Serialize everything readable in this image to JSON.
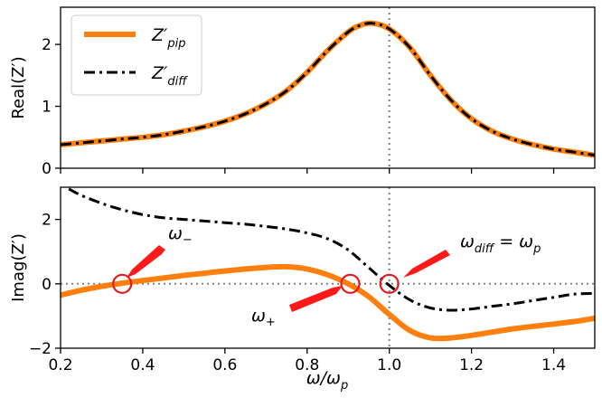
{
  "colors": {
    "pip": "#ff7f0e",
    "diff": "#000000",
    "marker": "#e31a1c",
    "arrow": "#ff1a1a",
    "guide": "#808080"
  },
  "chart_data": [
    {
      "type": "line",
      "panel": "top",
      "ylabel": "Real(Z′)",
      "xlim": [
        0.2,
        1.5
      ],
      "ylim": [
        0,
        2.6
      ],
      "yticks": [
        0,
        1,
        2
      ],
      "ytick_labels": [
        "0",
        "1",
        "2"
      ],
      "vline_x": 1.0,
      "legend_position": "top-left",
      "series": [
        {
          "name": "pip",
          "legend_base": "Z′",
          "legend_sub": "pip",
          "style": "solid",
          "x": [
            0.2,
            0.25,
            0.3,
            0.35,
            0.4,
            0.45,
            0.5,
            0.55,
            0.6,
            0.65,
            0.7,
            0.75,
            0.8,
            0.85,
            0.9,
            0.93,
            0.96,
            1.0,
            1.05,
            1.1,
            1.15,
            1.2,
            1.25,
            1.3,
            1.35,
            1.4,
            1.45,
            1.5
          ],
          "values": [
            0.38,
            0.41,
            0.44,
            0.47,
            0.5,
            0.54,
            0.6,
            0.67,
            0.76,
            0.88,
            1.04,
            1.25,
            1.55,
            1.9,
            2.2,
            2.31,
            2.34,
            2.25,
            1.95,
            1.5,
            1.1,
            0.8,
            0.6,
            0.47,
            0.38,
            0.31,
            0.26,
            0.21
          ]
        },
        {
          "name": "diff",
          "legend_base": "Z′",
          "legend_sub": "diff",
          "style": "dashdot",
          "x": [
            0.2,
            0.25,
            0.3,
            0.35,
            0.4,
            0.45,
            0.5,
            0.55,
            0.6,
            0.65,
            0.7,
            0.75,
            0.8,
            0.85,
            0.9,
            0.93,
            0.96,
            1.0,
            1.05,
            1.1,
            1.15,
            1.2,
            1.25,
            1.3,
            1.35,
            1.4,
            1.45,
            1.5
          ],
          "values": [
            0.38,
            0.41,
            0.44,
            0.47,
            0.5,
            0.54,
            0.6,
            0.67,
            0.76,
            0.88,
            1.04,
            1.25,
            1.55,
            1.9,
            2.2,
            2.31,
            2.34,
            2.25,
            1.95,
            1.5,
            1.1,
            0.8,
            0.6,
            0.47,
            0.38,
            0.31,
            0.26,
            0.21
          ]
        }
      ]
    },
    {
      "type": "line",
      "panel": "bottom",
      "xlabel": "ω/ωp",
      "ylabel": "Imag(Z′)",
      "xlim": [
        0.2,
        1.5
      ],
      "ylim": [
        -2,
        3
      ],
      "xticks": [
        0.2,
        0.4,
        0.6,
        0.8,
        1.0,
        1.2,
        1.4
      ],
      "xtick_labels": [
        "0.2",
        "0.4",
        "0.6",
        "0.8",
        "1.0",
        "1.2",
        "1.4"
      ],
      "yticks": [
        -2,
        0,
        2
      ],
      "ytick_labels": [
        "−2",
        "0",
        "2"
      ],
      "hline_y": 0,
      "vline_x": 1.0,
      "series": [
        {
          "name": "pip",
          "style": "solid",
          "x": [
            0.2,
            0.25,
            0.3,
            0.35,
            0.4,
            0.45,
            0.5,
            0.55,
            0.6,
            0.65,
            0.7,
            0.75,
            0.8,
            0.85,
            0.9,
            0.95,
            1.0,
            1.05,
            1.1,
            1.15,
            1.2,
            1.25,
            1.3,
            1.35,
            1.4,
            1.45,
            1.5
          ],
          "values": [
            -0.35,
            -0.2,
            -0.08,
            0.02,
            0.1,
            0.18,
            0.26,
            0.33,
            0.4,
            0.46,
            0.51,
            0.53,
            0.46,
            0.28,
            0.0,
            -0.4,
            -0.95,
            -1.45,
            -1.68,
            -1.68,
            -1.6,
            -1.5,
            -1.4,
            -1.32,
            -1.25,
            -1.17,
            -1.07
          ]
        },
        {
          "name": "diff",
          "style": "dashdot",
          "x": [
            0.22,
            0.25,
            0.3,
            0.35,
            0.4,
            0.45,
            0.5,
            0.55,
            0.6,
            0.65,
            0.7,
            0.75,
            0.8,
            0.85,
            0.9,
            0.95,
            1.0,
            1.05,
            1.1,
            1.15,
            1.2,
            1.25,
            1.3,
            1.35,
            1.4,
            1.45,
            1.5
          ],
          "values": [
            2.95,
            2.75,
            2.5,
            2.3,
            2.15,
            2.05,
            2.0,
            1.95,
            1.9,
            1.85,
            1.78,
            1.7,
            1.58,
            1.4,
            1.05,
            0.5,
            -0.05,
            -0.5,
            -0.75,
            -0.82,
            -0.78,
            -0.7,
            -0.62,
            -0.52,
            -0.42,
            -0.32,
            -0.3
          ]
        }
      ],
      "markers": [
        {
          "name": "omega-minus-marker",
          "x": 0.35,
          "y": 0
        },
        {
          "name": "omega-plus-marker",
          "x": 0.905,
          "y": 0
        },
        {
          "name": "omega-diff-marker",
          "x": 1.0,
          "y": 0
        }
      ],
      "annotations": [
        {
          "base": "ω",
          "sub": "−",
          "rest": ""
        },
        {
          "base": "ω",
          "sub": "+",
          "rest": ""
        },
        {
          "base": "ω",
          "sub": "diff",
          "rest": " = ω",
          "sub2": "p"
        }
      ],
      "xlabel_base": "ω/ω",
      "xlabel_sub": "p"
    }
  ]
}
